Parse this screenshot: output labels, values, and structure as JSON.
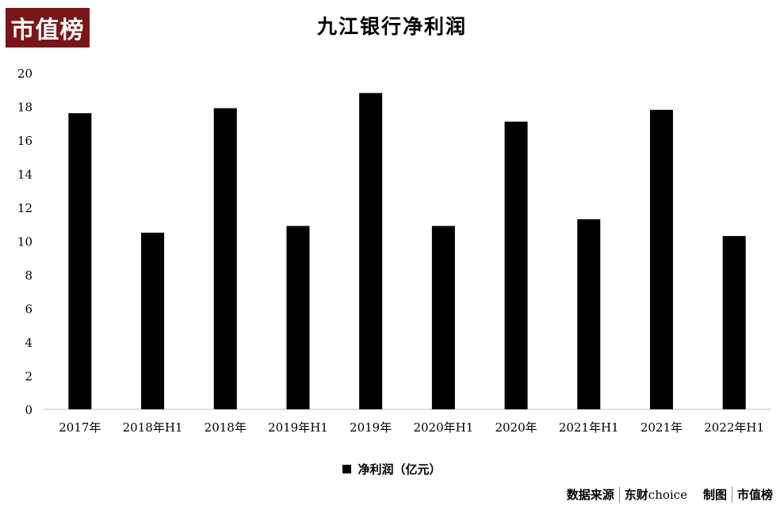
{
  "logo": "市值榜",
  "chart_data": {
    "type": "bar",
    "title": "九江银行净利润",
    "categories": [
      "2017年",
      "2018年H1",
      "2018年",
      "2019年H1",
      "2019年",
      "2020年H1",
      "2020年",
      "2021年H1",
      "2021年",
      "2022年H1"
    ],
    "series": [
      {
        "name": "净利润（亿元）",
        "values": [
          17.6,
          10.5,
          17.9,
          10.9,
          18.8,
          10.9,
          17.1,
          11.3,
          17.8,
          10.3
        ]
      }
    ],
    "yticks": [
      "0",
      "2",
      "4",
      "6",
      "8",
      "10",
      "12",
      "14",
      "16",
      "18",
      "20"
    ],
    "ylim": [
      0,
      20
    ],
    "grid": false,
    "legend_position": "bottom-center",
    "bar_color": "#000000"
  },
  "legend": {
    "label": "净利润（亿元）"
  },
  "source": {
    "label": "数据来源",
    "value_cn": "东财",
    "value_en": "choice",
    "credit_label": "制图",
    "credit_value": "市值榜"
  }
}
